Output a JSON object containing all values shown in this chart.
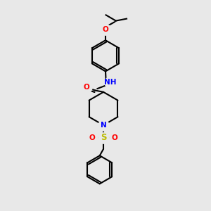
{
  "bg_color": "#e8e8e8",
  "line_color": "#000000",
  "line_width": 1.5,
  "atom_colors": {
    "O": "#ff0000",
    "N": "#0000ff",
    "S": "#cccc00",
    "H": "#008080",
    "C": "#000000"
  },
  "font_size": 7.5
}
